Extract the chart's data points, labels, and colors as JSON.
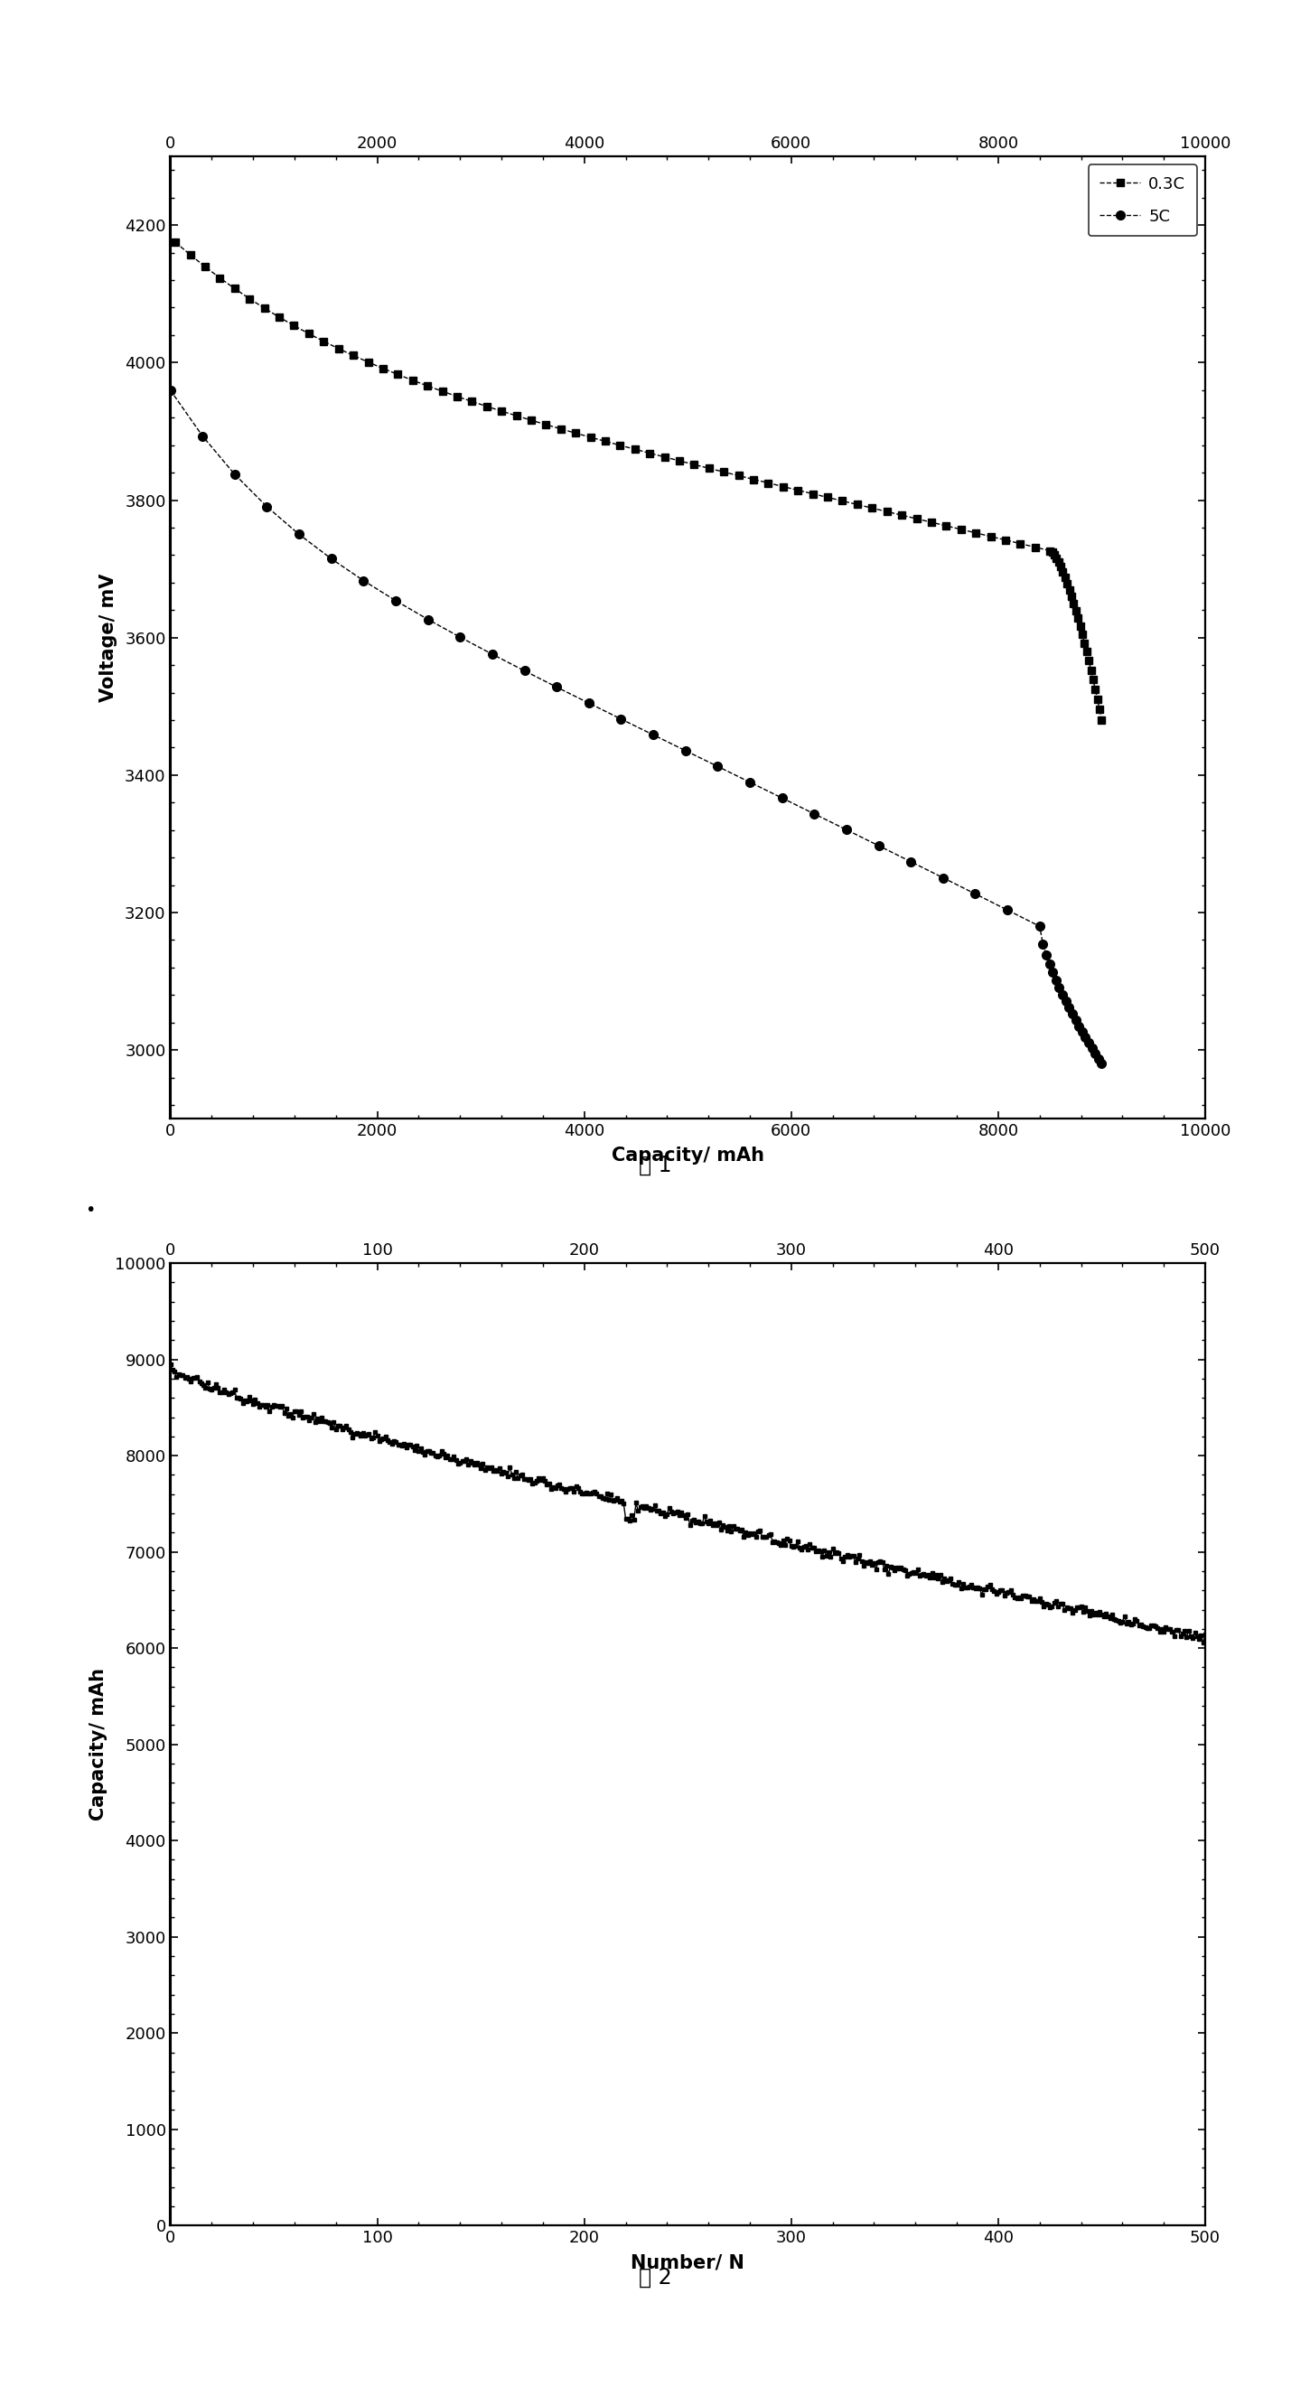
{
  "fig1": {
    "xlabel": "Capacity/ mAh",
    "ylabel": "Voltage/ mV",
    "xlim": [
      0,
      10000
    ],
    "ylim": [
      2900,
      4300
    ],
    "xticks": [
      0,
      2000,
      4000,
      6000,
      8000,
      10000
    ],
    "yticks": [
      3000,
      3200,
      3400,
      3600,
      3800,
      4000,
      4200
    ],
    "caption": "图 1",
    "legend_labels": [
      "0.3C",
      "5C"
    ]
  },
  "fig2": {
    "xlabel": "Number/ N",
    "ylabel": "Capacity/ mAh",
    "xlim": [
      0,
      500
    ],
    "ylim": [
      0,
      10000
    ],
    "xticks": [
      0,
      100,
      200,
      300,
      400,
      500
    ],
    "yticks": [
      0,
      1000,
      2000,
      3000,
      4000,
      5000,
      6000,
      7000,
      8000,
      9000,
      10000
    ],
    "caption": "图 2"
  },
  "background_color": "#ffffff"
}
